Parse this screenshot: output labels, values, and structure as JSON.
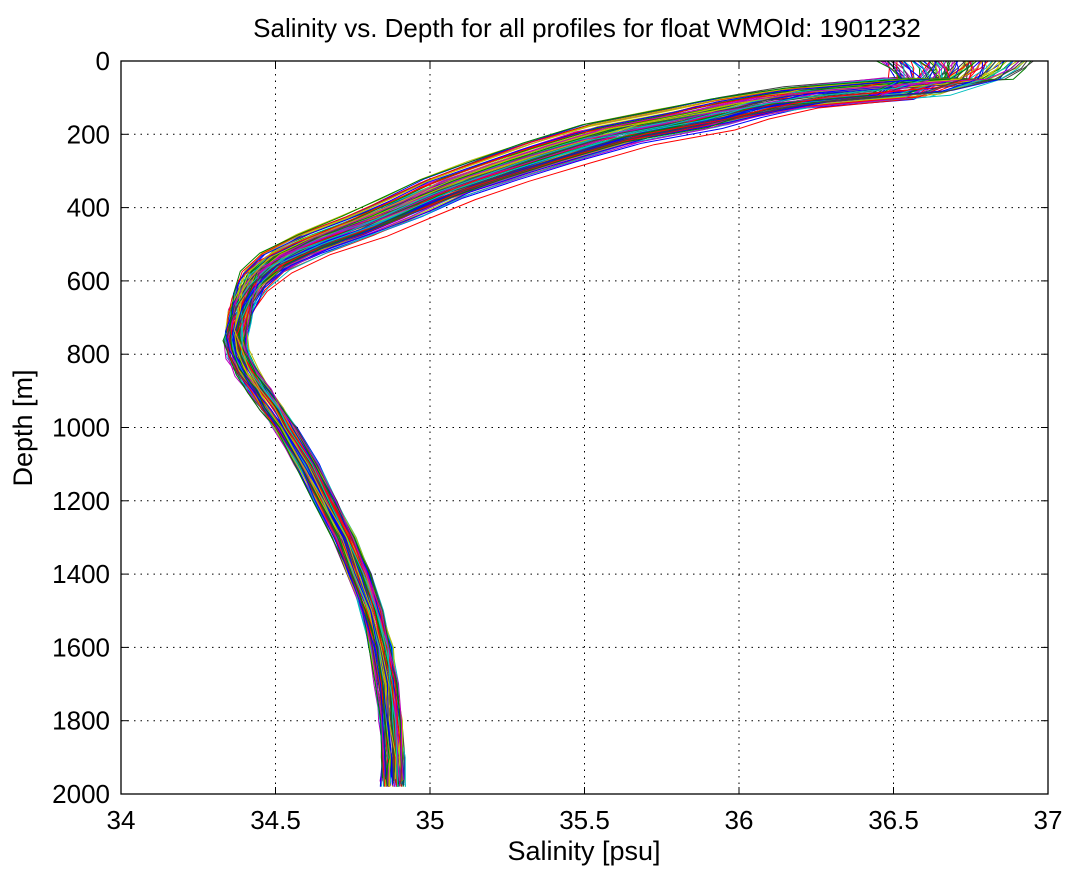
{
  "chart_data": {
    "type": "line",
    "title": "Salinity vs. Depth for all profiles for float WMOId: 1901232",
    "xlabel": "Salinity [psu]",
    "ylabel": "Depth [m]",
    "xlim": [
      34,
      37
    ],
    "ylim": [
      0,
      2000
    ],
    "y_reversed": true,
    "grid": "dotted",
    "legend": "none",
    "x_ticks": [
      "34",
      "34.5",
      "35",
      "35.5",
      "36",
      "36.5",
      "37"
    ],
    "y_ticks": [
      "0",
      "200",
      "400",
      "600",
      "800",
      "1000",
      "1200",
      "1400",
      "1600",
      "1800",
      "2000"
    ],
    "colors": [
      "#0000ff",
      "#008000",
      "#ff0000",
      "#00bfbf",
      "#bf00bf",
      "#bfbf00",
      "#404040"
    ],
    "profile_count_approx": 100,
    "mean_profile": {
      "depth": [
        0,
        20,
        50,
        75,
        100,
        130,
        160,
        200,
        250,
        300,
        350,
        400,
        450,
        500,
        550,
        600,
        650,
        700,
        750,
        800,
        850,
        900,
        950,
        1000,
        1100,
        1200,
        1300,
        1400,
        1500,
        1600,
        1700,
        1800,
        1900,
        1980
      ],
      "salinity": [
        36.7,
        36.7,
        36.68,
        36.55,
        36.2,
        36.0,
        35.85,
        35.6,
        35.4,
        35.22,
        35.05,
        34.92,
        34.78,
        34.62,
        34.5,
        34.43,
        34.4,
        34.38,
        34.37,
        34.38,
        34.41,
        34.45,
        34.49,
        34.53,
        34.6,
        34.66,
        34.72,
        34.77,
        34.81,
        34.84,
        34.86,
        34.87,
        34.88,
        34.88
      ]
    }
  }
}
